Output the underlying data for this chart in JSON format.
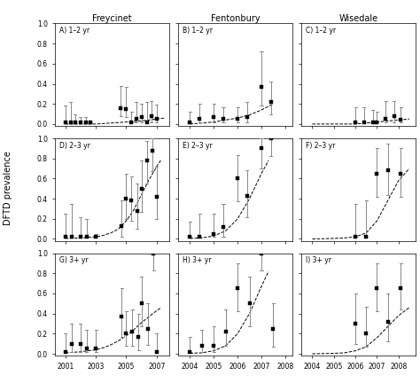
{
  "col_titles": [
    "Freycinet",
    "Fentonbury",
    "Wisedale"
  ],
  "ylabel": "DFTD prevalence",
  "panels": [
    {
      "label": "A) 1–2 yr",
      "xlim": [
        2000.3,
        2007.8
      ],
      "xticks": [
        2001,
        2003,
        2005,
        2007
      ],
      "xticklabels": [
        "2001",
        "2003",
        "2005",
        "2007"
      ],
      "ylim": [
        -0.02,
        1.0
      ],
      "yticks": [
        0.0,
        0.2,
        0.4,
        0.6,
        0.8,
        1.0
      ],
      "yticklabels": [
        "0.0",
        "0.2",
        "0.4",
        "0.6",
        "0.8",
        "1.0"
      ],
      "points": [
        2001.0,
        2001.35,
        2001.65,
        2002.0,
        2002.35,
        2002.65,
        2004.65,
        2005.0,
        2005.35,
        2005.65,
        2006.0,
        2006.35,
        2006.65,
        2007.0
      ],
      "y": [
        0.02,
        0.02,
        0.02,
        0.02,
        0.02,
        0.02,
        0.16,
        0.15,
        0.02,
        0.05,
        0.07,
        0.02,
        0.08,
        0.05
      ],
      "yerr_lo": [
        0.02,
        0.02,
        0.02,
        0.02,
        0.02,
        0.02,
        0.08,
        0.07,
        0.02,
        0.02,
        0.02,
        0.02,
        0.02,
        0.02
      ],
      "yerr_hi": [
        0.18,
        0.22,
        0.1,
        0.07,
        0.07,
        0.02,
        0.38,
        0.37,
        0.12,
        0.22,
        0.2,
        0.22,
        0.23,
        0.19
      ],
      "curve_x": [
        2001,
        2002,
        2003,
        2004,
        2005,
        2006,
        2007,
        2007.5
      ],
      "curve_y": [
        0.0,
        0.0,
        0.0,
        0.01,
        0.02,
        0.03,
        0.05,
        0.06
      ]
    },
    {
      "label": "B) 1–2 yr",
      "xlim": [
        2003.5,
        2008.3
      ],
      "xticks": [
        2004,
        2005,
        2006,
        2007,
        2008
      ],
      "xticklabels": [
        "2004",
        "2005",
        "2006",
        "2007",
        "2008"
      ],
      "ylim": [
        -0.02,
        1.0
      ],
      "yticks": [
        0.0,
        0.2,
        0.4,
        0.6,
        0.8,
        1.0
      ],
      "yticklabels": [
        "0.0",
        "0.2",
        "0.4",
        "0.6",
        "0.8",
        "1.0"
      ],
      "points": [
        2004.0,
        2004.4,
        2005.0,
        2005.4,
        2006.0,
        2006.4,
        2007.0,
        2007.4
      ],
      "y": [
        0.02,
        0.05,
        0.07,
        0.05,
        0.05,
        0.07,
        0.37,
        0.22
      ],
      "yerr_lo": [
        0.02,
        0.02,
        0.02,
        0.02,
        0.02,
        0.02,
        0.18,
        0.1
      ],
      "yerr_hi": [
        0.12,
        0.2,
        0.2,
        0.17,
        0.17,
        0.22,
        0.72,
        0.42
      ],
      "curve_x": [
        2004,
        2004.5,
        2005,
        2005.5,
        2006,
        2006.5,
        2007,
        2007.5
      ],
      "curve_y": [
        0.0,
        0.01,
        0.02,
        0.04,
        0.06,
        0.09,
        0.14,
        0.2
      ]
    },
    {
      "label": "C) 1–2 yr",
      "xlim": [
        2003.5,
        2008.8
      ],
      "xticks": [
        2004,
        2005,
        2006,
        2007,
        2008
      ],
      "xticklabels": [
        "2004",
        "2005",
        "2006",
        "2007",
        "2008"
      ],
      "ylim": [
        -0.02,
        1.0
      ],
      "yticks": [
        0.0,
        0.2,
        0.4,
        0.6,
        0.8,
        1.0
      ],
      "yticklabels": [
        "0.0",
        "0.2",
        "0.4",
        "0.6",
        "0.8",
        "1.0"
      ],
      "points": [
        2006.0,
        2006.4,
        2006.8,
        2007.0,
        2007.4,
        2007.8,
        2008.1
      ],
      "y": [
        0.02,
        0.02,
        0.02,
        0.02,
        0.05,
        0.08,
        0.04
      ],
      "yerr_lo": [
        0.02,
        0.02,
        0.02,
        0.02,
        0.02,
        0.02,
        0.02
      ],
      "yerr_hi": [
        0.17,
        0.17,
        0.14,
        0.12,
        0.23,
        0.23,
        0.17
      ],
      "curve_x": [
        2004,
        2005,
        2006,
        2006.5,
        2007,
        2007.5,
        2008,
        2008.5
      ],
      "curve_y": [
        0.0,
        0.0,
        0.0,
        0.01,
        0.02,
        0.03,
        0.04,
        0.05
      ]
    },
    {
      "label": "D) 2–3 yr",
      "xlim": [
        2000.3,
        2007.8
      ],
      "xticks": [
        2001,
        2003,
        2005,
        2007
      ],
      "xticklabels": [
        "2001",
        "2003",
        "2005",
        "2007"
      ],
      "ylim": [
        -0.02,
        1.0
      ],
      "yticks": [
        0.0,
        0.2,
        0.4,
        0.6,
        0.8,
        1.0
      ],
      "yticklabels": [
        "0.0",
        "0.2",
        "0.4",
        "0.6",
        "0.8",
        "1.0"
      ],
      "points": [
        2001.0,
        2001.4,
        2002.0,
        2002.4,
        2003.0,
        2004.7,
        2005.0,
        2005.35,
        2005.7,
        2006.0,
        2006.35,
        2006.7,
        2007.0
      ],
      "y": [
        0.02,
        0.02,
        0.02,
        0.02,
        0.02,
        0.13,
        0.4,
        0.38,
        0.28,
        0.5,
        0.78,
        0.88,
        0.42
      ],
      "yerr_lo": [
        0.02,
        0.02,
        0.02,
        0.02,
        0.02,
        0.02,
        0.2,
        0.18,
        0.1,
        0.27,
        0.55,
        0.67,
        0.2
      ],
      "yerr_hi": [
        0.25,
        0.35,
        0.22,
        0.2,
        0.05,
        0.38,
        0.65,
        0.62,
        0.55,
        0.78,
        0.97,
        1.0,
        0.72
      ],
      "curve_x": [
        2001,
        2001.5,
        2002,
        2002.5,
        2003,
        2003.5,
        2004,
        2004.5,
        2005,
        2005.5,
        2006,
        2006.5,
        2007,
        2007.3
      ],
      "curve_y": [
        0.005,
        0.007,
        0.01,
        0.015,
        0.02,
        0.035,
        0.06,
        0.1,
        0.18,
        0.29,
        0.44,
        0.59,
        0.72,
        0.79
      ]
    },
    {
      "label": "E) 2–3 yr",
      "xlim": [
        2003.5,
        2008.3
      ],
      "xticks": [
        2004,
        2005,
        2006,
        2007,
        2008
      ],
      "xticklabels": [
        "2004",
        "2005",
        "2006",
        "2007",
        "2008"
      ],
      "ylim": [
        -0.02,
        1.0
      ],
      "yticks": [
        0.0,
        0.2,
        0.4,
        0.6,
        0.8,
        1.0
      ],
      "yticklabels": [
        "0.0",
        "0.2",
        "0.4",
        "0.6",
        "0.8",
        "1.0"
      ],
      "points": [
        2004.0,
        2004.4,
        2005.0,
        2005.4,
        2006.0,
        2006.4,
        2007.0,
        2007.4
      ],
      "y": [
        0.02,
        0.02,
        0.05,
        0.12,
        0.6,
        0.43,
        0.9,
        1.0
      ],
      "yerr_lo": [
        0.02,
        0.02,
        0.02,
        0.02,
        0.37,
        0.22,
        0.7,
        0.82
      ],
      "yerr_hi": [
        0.17,
        0.25,
        0.25,
        0.35,
        0.83,
        0.68,
        1.0,
        1.0
      ],
      "curve_x": [
        2004,
        2004.5,
        2005,
        2005.5,
        2006,
        2006.5,
        2007,
        2007.3
      ],
      "curve_y": [
        0.005,
        0.01,
        0.03,
        0.08,
        0.2,
        0.4,
        0.65,
        0.78
      ]
    },
    {
      "label": "F) 2–3 yr",
      "xlim": [
        2003.5,
        2008.8
      ],
      "xticks": [
        2004,
        2005,
        2006,
        2007,
        2008
      ],
      "xticklabels": [
        "2004",
        "2005",
        "2006",
        "2007",
        "2008"
      ],
      "ylim": [
        -0.02,
        1.0
      ],
      "yticks": [
        0.0,
        0.2,
        0.4,
        0.6,
        0.8,
        1.0
      ],
      "yticklabels": [
        "0.0",
        "0.2",
        "0.4",
        "0.6",
        "0.8",
        "1.0"
      ],
      "points": [
        2006.0,
        2006.5,
        2007.0,
        2007.5,
        2008.1
      ],
      "y": [
        0.02,
        0.02,
        0.65,
        0.68,
        0.65
      ],
      "yerr_lo": [
        0.02,
        0.02,
        0.42,
        0.44,
        0.42
      ],
      "yerr_hi": [
        0.35,
        0.38,
        0.9,
        0.95,
        0.9
      ],
      "curve_x": [
        2004,
        2004.5,
        2005,
        2005.5,
        2006,
        2006.5,
        2007,
        2007.5,
        2008,
        2008.5
      ],
      "curve_y": [
        0.0,
        0.002,
        0.005,
        0.01,
        0.02,
        0.06,
        0.18,
        0.38,
        0.58,
        0.7
      ]
    },
    {
      "label": "G) 3+ yr",
      "xlim": [
        2000.3,
        2007.8
      ],
      "xticks": [
        2001,
        2003,
        2005,
        2007
      ],
      "xticklabels": [
        "2001",
        "2003",
        "2005",
        "2007"
      ],
      "ylim": [
        -0.02,
        1.0
      ],
      "yticks": [
        0.0,
        0.2,
        0.4,
        0.6,
        0.8,
        1.0
      ],
      "yticklabels": [
        "0.0",
        "0.2",
        "0.4",
        "0.6",
        "0.8",
        "1.0"
      ],
      "points": [
        2001.0,
        2001.4,
        2002.0,
        2002.4,
        2003.0,
        2004.7,
        2005.0,
        2005.4,
        2005.8,
        2006.0,
        2006.4,
        2006.8,
        2007.0
      ],
      "y": [
        0.02,
        0.1,
        0.1,
        0.05,
        0.05,
        0.37,
        0.2,
        0.22,
        0.17,
        0.5,
        0.25,
        1.0,
        0.02
      ],
      "yerr_lo": [
        0.02,
        0.02,
        0.02,
        0.02,
        0.02,
        0.17,
        0.08,
        0.08,
        0.04,
        0.27,
        0.09,
        0.83,
        0.02
      ],
      "yerr_hi": [
        0.2,
        0.3,
        0.3,
        0.24,
        0.24,
        0.65,
        0.42,
        0.44,
        0.4,
        0.77,
        0.5,
        1.0,
        0.2
      ],
      "curve_x": [
        2001,
        2001.5,
        2002,
        2002.5,
        2003,
        2003.5,
        2004,
        2004.5,
        2005,
        2005.5,
        2006,
        2006.5,
        2007,
        2007.3
      ],
      "curve_y": [
        0.01,
        0.015,
        0.02,
        0.03,
        0.04,
        0.06,
        0.09,
        0.13,
        0.18,
        0.24,
        0.31,
        0.37,
        0.43,
        0.46
      ]
    },
    {
      "label": "H) 3+ yr",
      "xlim": [
        2003.5,
        2008.3
      ],
      "xticks": [
        2004,
        2005,
        2006,
        2007,
        2008
      ],
      "xticklabels": [
        "2004",
        "2005",
        "2006",
        "2007",
        "2008"
      ],
      "ylim": [
        -0.02,
        1.0
      ],
      "yticks": [
        0.0,
        0.2,
        0.4,
        0.6,
        0.8,
        1.0
      ],
      "yticklabels": [
        "0.0",
        "0.2",
        "0.4",
        "0.6",
        "0.8",
        "1.0"
      ],
      "points": [
        2004.0,
        2004.5,
        2005.0,
        2005.5,
        2006.0,
        2006.5,
        2007.0,
        2007.5
      ],
      "y": [
        0.02,
        0.08,
        0.08,
        0.22,
        0.65,
        0.5,
        1.0,
        0.25
      ],
      "yerr_lo": [
        0.02,
        0.02,
        0.02,
        0.08,
        0.42,
        0.27,
        0.83,
        0.07
      ],
      "yerr_hi": [
        0.17,
        0.24,
        0.27,
        0.44,
        0.9,
        0.77,
        1.0,
        0.5
      ],
      "curve_x": [
        2004,
        2004.5,
        2005,
        2005.5,
        2006,
        2006.5,
        2007,
        2007.3
      ],
      "curve_y": [
        0.005,
        0.01,
        0.03,
        0.08,
        0.2,
        0.4,
        0.67,
        0.82
      ]
    },
    {
      "label": "I) 3+ yr",
      "xlim": [
        2003.5,
        2008.8
      ],
      "xticks": [
        2004,
        2005,
        2006,
        2007,
        2008
      ],
      "xticklabels": [
        "2004",
        "2005",
        "2006",
        "2007",
        "2008"
      ],
      "ylim": [
        -0.02,
        1.0
      ],
      "yticks": [
        0.0,
        0.2,
        0.4,
        0.6,
        0.8,
        1.0
      ],
      "yticklabels": [
        "0.0",
        "0.2",
        "0.4",
        "0.6",
        "0.8",
        "1.0"
      ],
      "points": [
        2006.0,
        2006.5,
        2007.0,
        2007.5,
        2008.1
      ],
      "y": [
        0.3,
        0.2,
        0.65,
        0.32,
        0.65
      ],
      "yerr_lo": [
        0.1,
        0.07,
        0.42,
        0.12,
        0.44
      ],
      "yerr_hi": [
        0.6,
        0.47,
        0.9,
        0.6,
        0.9
      ],
      "curve_x": [
        2004,
        2004.5,
        2005,
        2005.5,
        2006,
        2006.5,
        2007,
        2007.5,
        2008,
        2008.5
      ],
      "curve_y": [
        0.0,
        0.002,
        0.005,
        0.01,
        0.03,
        0.07,
        0.16,
        0.27,
        0.38,
        0.46
      ]
    }
  ]
}
